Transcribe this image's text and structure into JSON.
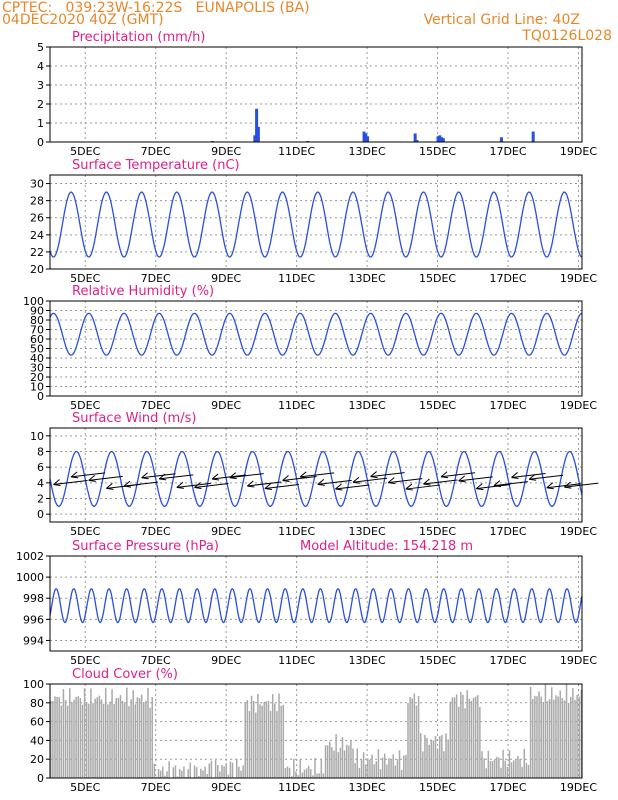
{
  "header": {
    "line1_left": "CPTEC:   039:23W-16:22S   EUNAPOLIS (BA)",
    "line2_left": "04DEC2020 40Z (GMT)",
    "line1_right": "Vertical Grid Line: 40Z",
    "line2_right": "TQ0126L028"
  },
  "colors": {
    "header": "#e8872a",
    "title": "#e0208a",
    "series": "#2a4fe0",
    "cloud": "#a9a9a9",
    "grid": "#9a9a9a"
  },
  "chart_data": [
    {
      "type": "bar",
      "title": "Precipitation (mm/h)",
      "x_ticks": [
        "5DEC",
        "7DEC",
        "9DEC",
        "11DEC",
        "13DEC",
        "15DEC",
        "17DEC",
        "19DEC"
      ],
      "x_range_days": [
        4,
        19.1
      ],
      "ylim": [
        0,
        5
      ],
      "y_ticks": [
        "0",
        "1",
        "2",
        "3",
        "4",
        "5"
      ],
      "x": [
        9.8,
        9.85,
        9.9,
        12.9,
        12.95,
        13.0,
        14.35,
        14.4,
        15.0,
        15.05,
        15.1,
        15.15,
        16.8,
        17.7,
        11.3,
        8.6
      ],
      "values": [
        0.35,
        1.75,
        0.8,
        0.55,
        0.45,
        0.3,
        0.45,
        0.1,
        0.3,
        0.35,
        0.25,
        0.2,
        0.25,
        0.55,
        0.05,
        0.05
      ],
      "grid": true
    },
    {
      "type": "line",
      "title": "Surface Temperature (nC)",
      "x_ticks": [
        "5DEC",
        "7DEC",
        "9DEC",
        "11DEC",
        "13DEC",
        "15DEC",
        "17DEC",
        "19DEC"
      ],
      "x_range_days": [
        4,
        19.1
      ],
      "ylim": [
        20,
        31
      ],
      "y_ticks": [
        "20",
        "22",
        "24",
        "26",
        "28",
        "30"
      ],
      "mean": 25.2,
      "amplitude": 3.8,
      "period_days": 1,
      "peak_phase": 0.35,
      "grid": true
    },
    {
      "type": "line",
      "title": "Relative Humidity (%)",
      "x_ticks": [
        "5DEC",
        "7DEC",
        "9DEC",
        "11DEC",
        "13DEC",
        "15DEC",
        "17DEC",
        "19DEC"
      ],
      "x_range_days": [
        4,
        19.1
      ],
      "ylim": [
        0,
        100
      ],
      "y_ticks": [
        "0",
        "10",
        "20",
        "30",
        "40",
        "50",
        "60",
        "70",
        "80",
        "90",
        "100"
      ],
      "mean": 65,
      "amplitude": 22,
      "period_days": 1,
      "peak_phase": 0.85,
      "grid": true
    },
    {
      "type": "line",
      "title": "Surface Wind (m/s)",
      "x_ticks": [
        "5DEC",
        "7DEC",
        "9DEC",
        "11DEC",
        "13DEC",
        "15DEC",
        "17DEC",
        "19DEC"
      ],
      "x_range_days": [
        4,
        19.1
      ],
      "ylim": [
        -1,
        11
      ],
      "y_ticks": [
        "0",
        "2",
        "4",
        "6",
        "8",
        "10"
      ],
      "mean": 4.5,
      "amplitude": 3.5,
      "period_days": 1,
      "peak_phase": 0.5,
      "wind_barbs": "westward",
      "grid": true
    },
    {
      "type": "line",
      "title": "Surface Pressure (hPa)",
      "annotation": "Model Altitude: 154.218 m",
      "x_ticks": [
        "5DEC",
        "7DEC",
        "9DEC",
        "11DEC",
        "13DEC",
        "15DEC",
        "17DEC",
        "19DEC"
      ],
      "x_range_days": [
        4,
        19.1
      ],
      "ylim": [
        993,
        1002
      ],
      "y_ticks": [
        "994",
        "996",
        "998",
        "1000",
        "1002"
      ],
      "mean": 997.3,
      "amplitude": 1.6,
      "period_days": 0.5,
      "peak_phase": 0.1,
      "grid": true
    },
    {
      "type": "bar",
      "title": "Cloud Cover (%)",
      "x_ticks": [
        "5DEC",
        "7DEC",
        "9DEC",
        "11DEC",
        "13DEC",
        "15DEC",
        "17DEC",
        "19DEC"
      ],
      "x_range_days": [
        4,
        19.1
      ],
      "ylim": [
        0,
        100
      ],
      "y_ticks": [
        "0",
        "20",
        "40",
        "60",
        "80",
        "100"
      ],
      "segments": [
        {
          "x": [
            4.0,
            6.9
          ],
          "level": 85
        },
        {
          "x": [
            6.9,
            8.4
          ],
          "level": 8
        },
        {
          "x": [
            8.4,
            9.5
          ],
          "level": 12
        },
        {
          "x": [
            9.5,
            10.6
          ],
          "level": 80
        },
        {
          "x": [
            10.6,
            11.8
          ],
          "level": 10
        },
        {
          "x": [
            11.8,
            12.6
          ],
          "level": 35
        },
        {
          "x": [
            12.6,
            14.1
          ],
          "level": 20
        },
        {
          "x": [
            14.1,
            14.5
          ],
          "level": 85
        },
        {
          "x": [
            14.5,
            15.3
          ],
          "level": 40
        },
        {
          "x": [
            15.3,
            16.2
          ],
          "level": 85
        },
        {
          "x": [
            16.2,
            17.6
          ],
          "level": 20
        },
        {
          "x": [
            17.6,
            19.1
          ],
          "level": 88
        }
      ],
      "grid": true
    }
  ]
}
